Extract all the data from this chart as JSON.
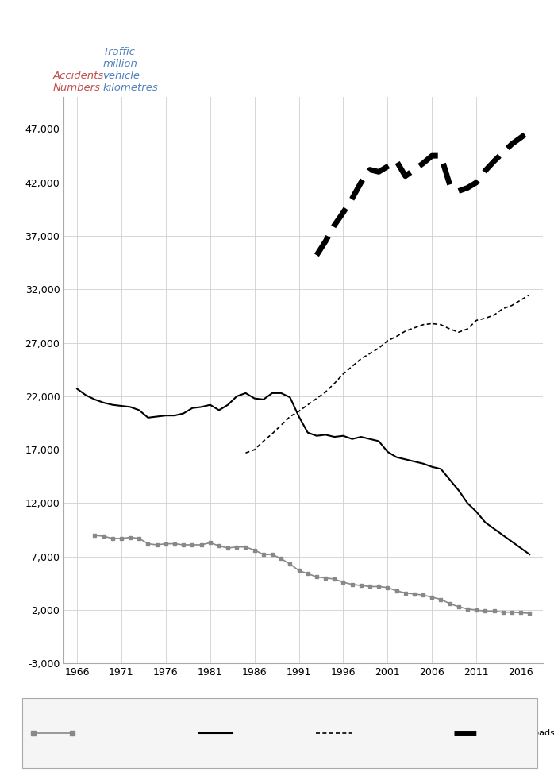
{
  "years": [
    1966,
    1967,
    1968,
    1969,
    1970,
    1971,
    1972,
    1973,
    1974,
    1975,
    1976,
    1977,
    1978,
    1979,
    1980,
    1981,
    1982,
    1983,
    1984,
    1985,
    1986,
    1987,
    1988,
    1989,
    1990,
    1991,
    1992,
    1993,
    1994,
    1995,
    1996,
    1997,
    1998,
    1999,
    2000,
    2001,
    2002,
    2003,
    2004,
    2005,
    2006,
    2007,
    2008,
    2009,
    2010,
    2011,
    2012,
    2013,
    2014,
    2015,
    2016,
    2017
  ],
  "all_injury": [
    22700,
    22100,
    21700,
    21400,
    21200,
    21100,
    21000,
    20700,
    20000,
    20100,
    20200,
    20200,
    20400,
    20900,
    21000,
    21200,
    20700,
    21200,
    22000,
    22300,
    21800,
    21700,
    22300,
    22300,
    21900,
    20100,
    18600,
    18300,
    18400,
    18200,
    18300,
    18000,
    18200,
    18000,
    17800,
    16800,
    16300,
    16100,
    15900,
    15700,
    15400,
    15200,
    14200,
    13200,
    12000,
    11200,
    10200,
    9600,
    9000,
    8400,
    7800,
    7200
  ],
  "fatal_serious": [
    null,
    null,
    9000,
    8900,
    8700,
    8700,
    8800,
    8700,
    8200,
    8100,
    8200,
    8200,
    8100,
    8100,
    8100,
    8300,
    8000,
    7800,
    7900,
    7900,
    7600,
    7200,
    7200,
    6800,
    6300,
    5700,
    5400,
    5100,
    5000,
    4900,
    4600,
    4400,
    4300,
    4200,
    4200,
    4100,
    3800,
    3600,
    3500,
    3400,
    3200,
    3000,
    2600,
    2300,
    2100,
    2000,
    1900,
    1900,
    1800,
    1800,
    1750,
    1700
  ],
  "traffic_m_a_years": [
    1985,
    1986,
    1987,
    1988,
    1989,
    1990,
    1991,
    1992,
    1993,
    1994,
    1995,
    1996,
    1997,
    1998,
    1999,
    2000,
    2001,
    2002,
    2003,
    2004,
    2005,
    2006,
    2007,
    2008,
    2009,
    2010,
    2011,
    2012,
    2013,
    2014,
    2015,
    2016,
    2017
  ],
  "traffic_m_a_vals": [
    16700,
    17000,
    17800,
    18500,
    19300,
    20100,
    20600,
    21200,
    21800,
    22400,
    23200,
    24100,
    24800,
    25500,
    26000,
    26500,
    27200,
    27600,
    28100,
    28400,
    28700,
    28800,
    28700,
    28300,
    28000,
    28300,
    29100,
    29300,
    29600,
    30200,
    30500,
    31000,
    31500
  ],
  "traffic_all_years": [
    1993,
    1994,
    1995,
    1996,
    1997,
    1998,
    1999,
    2000,
    2001,
    2002,
    2003,
    2004,
    2005,
    2006,
    2007,
    2008,
    2009,
    2010,
    2011,
    2012,
    2013,
    2014,
    2015,
    2016,
    2017
  ],
  "traffic_all_vals": [
    35200,
    36500,
    38000,
    39200,
    40500,
    42000,
    43200,
    43000,
    43500,
    44000,
    42600,
    43200,
    43800,
    44500,
    44500,
    41800,
    41200,
    41500,
    42000,
    43100,
    44000,
    44800,
    45600,
    46200,
    46800
  ],
  "ylim": [
    -3000,
    50000
  ],
  "yticks": [
    -3000,
    2000,
    7000,
    12000,
    17000,
    22000,
    27000,
    32000,
    37000,
    42000,
    47000
  ],
  "ytick_labels": [
    "-3,000",
    "2,000",
    "7,000",
    "12,000",
    "17,000",
    "22,000",
    "27,000",
    "32,000",
    "37,000",
    "42,000",
    "47,000"
  ],
  "xticks": [
    1966,
    1971,
    1976,
    1981,
    1986,
    1991,
    1996,
    2001,
    2006,
    2011,
    2016
  ],
  "ylabel1_color": "#c0504d",
  "ylabel2_color": "#4f81bd",
  "grid_color": "#d0d0d0",
  "all_injury_color": "#000000",
  "fatal_serious_color": "#888888",
  "traffic_m_a_color": "#000000",
  "traffic_all_color": "#000000"
}
